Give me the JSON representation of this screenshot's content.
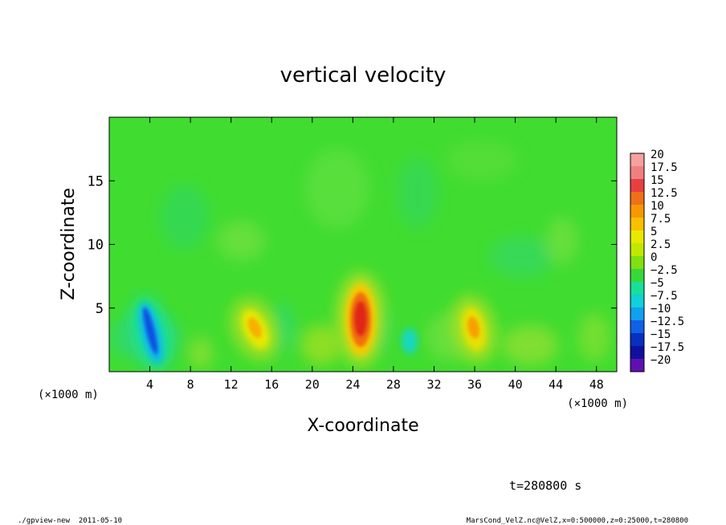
{
  "chart_data": {
    "type": "heatmap",
    "title": "vertical velocity",
    "xlabel": "X-coordinate",
    "ylabel": "Z-coordinate",
    "x_unit": "(×1000 m)",
    "x_unit_right": "(×1000 m)",
    "xlim": [
      0,
      50
    ],
    "ylim": [
      0,
      20
    ],
    "x_ticks": [
      4,
      8,
      12,
      16,
      20,
      24,
      28,
      32,
      36,
      40,
      44,
      48
    ],
    "y_ticks": [
      5,
      10,
      15
    ],
    "colorbar": {
      "labels": [
        "20",
        "17.5",
        "15",
        "12.5",
        "10",
        "7.5",
        "5",
        "2.5",
        "0",
        "−2.5",
        "−5",
        "−7.5",
        "−10",
        "−12.5",
        "−15",
        "−17.5",
        "−20"
      ],
      "colors": [
        "#f7a0a0",
        "#f08080",
        "#e84040",
        "#f07018",
        "#f89800",
        "#f8c000",
        "#e8e800",
        "#c0e800",
        "#80e010",
        "#38d838",
        "#18e098",
        "#10d0d8",
        "#10a0f0",
        "#1060e8",
        "#0830c0",
        "#1010a0",
        "#6010b0"
      ]
    },
    "features": [
      {
        "x": 4.5,
        "z": 3.5,
        "value": -12.5
      },
      {
        "x": 14,
        "z": 3.5,
        "value": 7.5
      },
      {
        "x": 24.8,
        "z": 4,
        "value": 15
      },
      {
        "x": 35.8,
        "z": 3.2,
        "value": 7.5
      },
      {
        "x": 29.5,
        "z": 2,
        "value": -5
      }
    ]
  },
  "annotations": {
    "time": "t=280800 s",
    "footer_left": "./gpview-new  2011-05-10",
    "footer_right": "MarsCond_VelZ.nc@VelZ,x=0:500000,z=0:25000,t=280800"
  }
}
